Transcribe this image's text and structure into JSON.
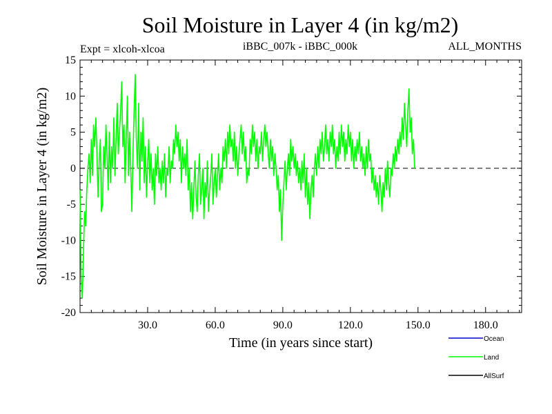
{
  "chart_data": {
    "type": "line",
    "title": "Soil Moisture in Layer 4 (in kg/m2)",
    "subtitle_left": "Expt = xlcoh-xlcoa",
    "subtitle_center": "iBBC_007k - iBBC_000k",
    "subtitle_right": "ALL_MONTHS",
    "xlabel": "Time (in years since start)",
    "ylabel": "Soil Moisture in Layer 4 (in kg/m2)",
    "xlim": [
      0,
      196
    ],
    "ylim": [
      -20,
      15
    ],
    "x_ticks": [
      30,
      60,
      90,
      120,
      150,
      180
    ],
    "x_tick_labels": [
      "30.0",
      "60.0",
      "90.0",
      "120.0",
      "150.0",
      "180.0"
    ],
    "y_ticks": [
      -20,
      -15,
      -10,
      -5,
      0,
      5,
      10,
      15
    ],
    "y_tick_labels": [
      "-20",
      "-15",
      "-10",
      "-5",
      "0",
      "5",
      "10",
      "15"
    ],
    "zero_line": 0,
    "series": [
      {
        "name": "Ocean",
        "color": "#0000cc",
        "values": []
      },
      {
        "name": "Land",
        "color": "#00ff00",
        "x_start": 0,
        "x_step": 0.5,
        "values": [
          -3,
          -15,
          -18,
          -12,
          -6,
          -8,
          -3,
          0,
          2,
          -2,
          4,
          -1,
          6,
          3,
          7,
          2,
          -4,
          1,
          4,
          -6,
          -5,
          3,
          0,
          6,
          2,
          -3,
          5,
          -2,
          3,
          0,
          7,
          -1,
          4,
          9,
          2,
          5,
          8,
          12,
          3,
          6,
          -2,
          4,
          10,
          -1,
          5,
          0,
          -6,
          2,
          8,
          13,
          4,
          0,
          9,
          -3,
          5,
          1,
          7,
          -2,
          3,
          -4,
          1,
          4,
          -2,
          2,
          -3,
          0,
          -5,
          2,
          -1,
          3,
          -2,
          0,
          -3,
          1,
          -2,
          2,
          -4,
          0,
          -1,
          3,
          -2,
          1,
          0,
          4,
          2,
          6,
          3,
          5,
          1,
          4,
          -2,
          3,
          0,
          2,
          -1,
          4,
          -3,
          0,
          -6,
          -2,
          -7,
          -3,
          1,
          -4,
          -6,
          -1,
          2,
          -5,
          -3,
          0,
          -7,
          -2,
          -4,
          1,
          -6,
          -3,
          -1,
          2,
          -5,
          -2,
          0,
          -4,
          -1,
          2,
          -3,
          0,
          -2,
          3,
          1,
          4,
          0,
          5,
          2,
          6,
          3,
          4,
          1,
          5,
          0,
          3,
          -1,
          2,
          4,
          6,
          2,
          5,
          1,
          3,
          -2,
          0,
          -1,
          4,
          2,
          6,
          3,
          5,
          1,
          4,
          0,
          3,
          2,
          5,
          1,
          4,
          6,
          3,
          5,
          2,
          0,
          4,
          1,
          3,
          -1,
          2,
          0,
          -3,
          -1,
          -6,
          -3,
          -10,
          -5,
          -2,
          1,
          -3,
          0,
          2,
          -1,
          4,
          1,
          3,
          0,
          2,
          -1,
          1,
          -2,
          0,
          -3,
          1,
          -2,
          2,
          -4,
          0,
          -5,
          -2,
          -7,
          -3,
          -1,
          -4,
          0,
          2,
          -1,
          3,
          0,
          4,
          2,
          5,
          1,
          3,
          6,
          2,
          4,
          1,
          5,
          3,
          6,
          2,
          4,
          0,
          3,
          1,
          5,
          2,
          6,
          3,
          5,
          1,
          4,
          2,
          6,
          3,
          5,
          1,
          4,
          0,
          3,
          1,
          4,
          2,
          5,
          1,
          3,
          0,
          2,
          -1,
          3,
          0,
          4,
          1,
          2,
          -2,
          0,
          -3,
          -1,
          -4,
          -2,
          -5,
          -1,
          -3,
          -6,
          -2,
          -4,
          0,
          -3,
          1,
          -2,
          -4,
          0,
          -1,
          2,
          0,
          3,
          1,
          4,
          2,
          5,
          3,
          7,
          4,
          9,
          6,
          3,
          8,
          11,
          5,
          7,
          2,
          4,
          0
        ]
      },
      {
        "name": "AllSurf",
        "color": "#000000",
        "values": []
      }
    ],
    "legend_position": "bottom-right"
  }
}
